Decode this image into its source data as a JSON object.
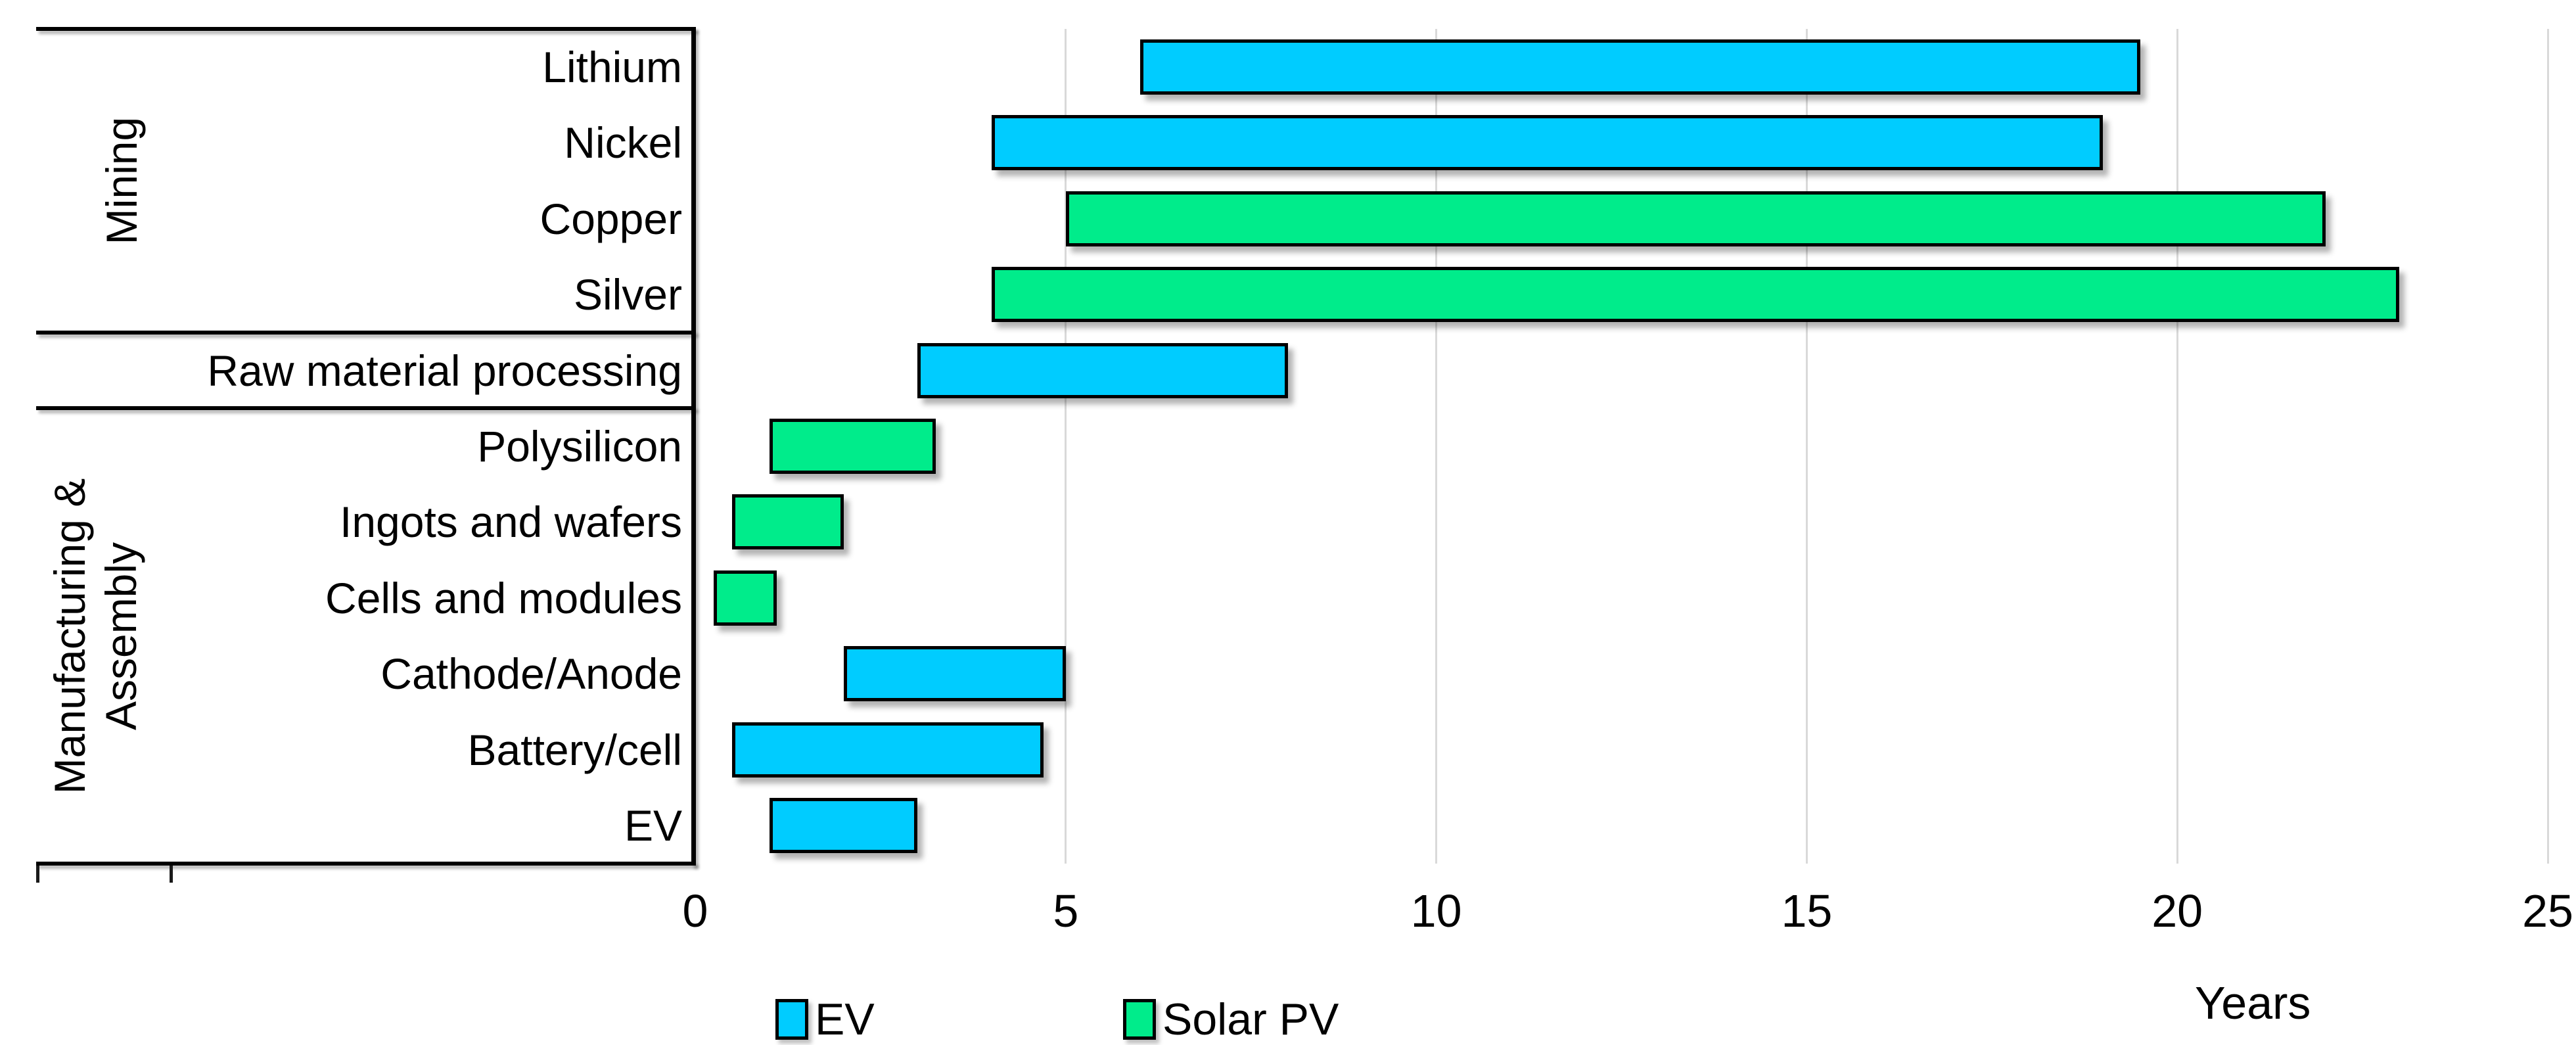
{
  "chart_data": {
    "type": "bar",
    "orientation": "horizontal-range",
    "title": "",
    "xlabel": "Years",
    "xlim": [
      0,
      25
    ],
    "x_ticks": [
      0,
      5,
      10,
      15,
      20,
      25
    ],
    "unit": "years",
    "grid": {
      "vertical_lines_at": [
        5,
        10,
        15,
        20,
        25
      ],
      "color": "#D9D9D9"
    },
    "colors": {
      "ev": "#00CCFF",
      "solar_pv": "#00EC8B",
      "bar_border": "#000000",
      "axis_lines": "#000000",
      "background": "#FFFFFF"
    },
    "legend": {
      "position": "bottom-left",
      "items": [
        {
          "name": "EV",
          "color": "#00CCFF"
        },
        {
          "name": "Solar PV",
          "color": "#00EC8B"
        }
      ]
    },
    "groups": [
      {
        "label_lines": [
          "Mining"
        ],
        "categories": [
          "Lithium",
          "Nickel",
          "Copper",
          "Silver"
        ]
      },
      {
        "label_lines": [],
        "categories": [
          "Raw material processing"
        ]
      },
      {
        "label_lines": [
          "Manufacturing &",
          "Assembly"
        ],
        "categories": [
          "Polysilicon",
          "Ingots and wafers",
          "Cells and modules",
          "Cathode/Anode",
          "Battery/cell",
          "EV"
        ]
      }
    ],
    "bars": [
      {
        "category": "Lithium",
        "series": "EV",
        "start": 6,
        "end": 19.5
      },
      {
        "category": "Nickel",
        "series": "EV",
        "start": 4,
        "end": 19
      },
      {
        "category": "Copper",
        "series": "Solar PV",
        "start": 5,
        "end": 22
      },
      {
        "category": "Silver",
        "series": "Solar PV",
        "start": 4,
        "end": 23
      },
      {
        "category": "Raw material processing",
        "series": "EV",
        "start": 3,
        "end": 8
      },
      {
        "category": "Polysilicon",
        "series": "Solar PV",
        "start": 1,
        "end": 3.25
      },
      {
        "category": "Ingots and wafers",
        "series": "Solar PV",
        "start": 0.5,
        "end": 2
      },
      {
        "category": "Cells and modules",
        "series": "Solar PV",
        "start": 0.25,
        "end": 1.1
      },
      {
        "category": "Cathode/Anode",
        "series": "EV",
        "start": 2,
        "end": 5
      },
      {
        "category": "Battery/cell",
        "series": "EV",
        "start": 0.5,
        "end": 4.7
      },
      {
        "category": "EV",
        "series": "EV",
        "start": 1,
        "end": 3
      }
    ]
  }
}
